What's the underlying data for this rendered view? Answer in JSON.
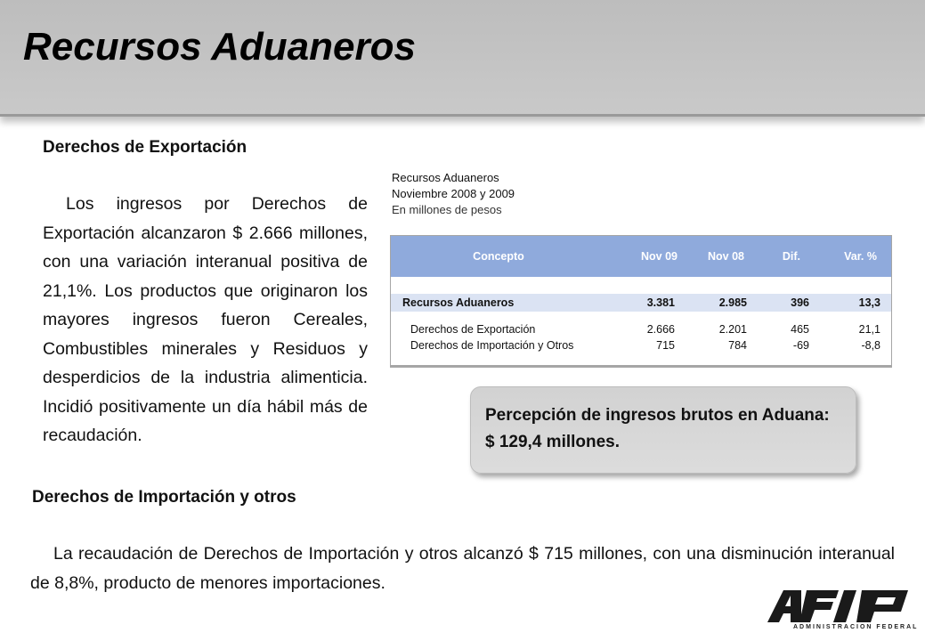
{
  "title": "Recursos Aduaneros",
  "section_export": {
    "heading": "Derechos de Exportación",
    "paragraph": "Los ingresos por Derechos de Exportación alcanzaron $ 2.666 millones, con una variación interanual positiva de 21,1%. Los productos que originaron los mayores ingresos fueron Cereales, Combustibles minerales y Residuos y desperdicios de la industria alimenticia. Incidió positivamente un día hábil más de recaudación."
  },
  "table": {
    "caption_title": "Recursos Aduaneros",
    "caption_period": "Noviembre 2008 y 2009",
    "caption_units": "En millones de pesos",
    "columns": [
      "Concepto",
      "Nov 09",
      "Nov 08",
      "Dif.",
      "Var. %"
    ],
    "total": {
      "label": "Recursos Aduaneros",
      "nov09": "3.381",
      "nov08": "2.985",
      "dif": "396",
      "var": "13,3"
    },
    "rows": [
      {
        "label": "Derechos de Exportación",
        "nov09": "2.666",
        "nov08": "2.201",
        "dif": "465",
        "var": "21,1"
      },
      {
        "label": "Derechos de Importación y Otros",
        "nov09": "715",
        "nov08": "784",
        "dif": "-69",
        "var": "-8,8"
      }
    ]
  },
  "callout": {
    "line1": "Percepción de ingresos brutos en Aduana:",
    "line2": "$ 129,4 millones."
  },
  "section_import": {
    "heading": "Derechos de Importación y otros",
    "paragraph": "La recaudación de Derechos de Importación y otros alcanzó $ 715 millones, con una disminución interanual de 8,8%, producto de menores importaciones."
  },
  "logo": {
    "name": "AFIP",
    "subtitle": "ADMINISTRACION FEDERAL"
  },
  "colors": {
    "header_bg": "#c4c4c4",
    "table_header_bg": "#8faadc",
    "table_total_bg": "#dbe3f3",
    "callout_bg": "#d6d6d6"
  }
}
